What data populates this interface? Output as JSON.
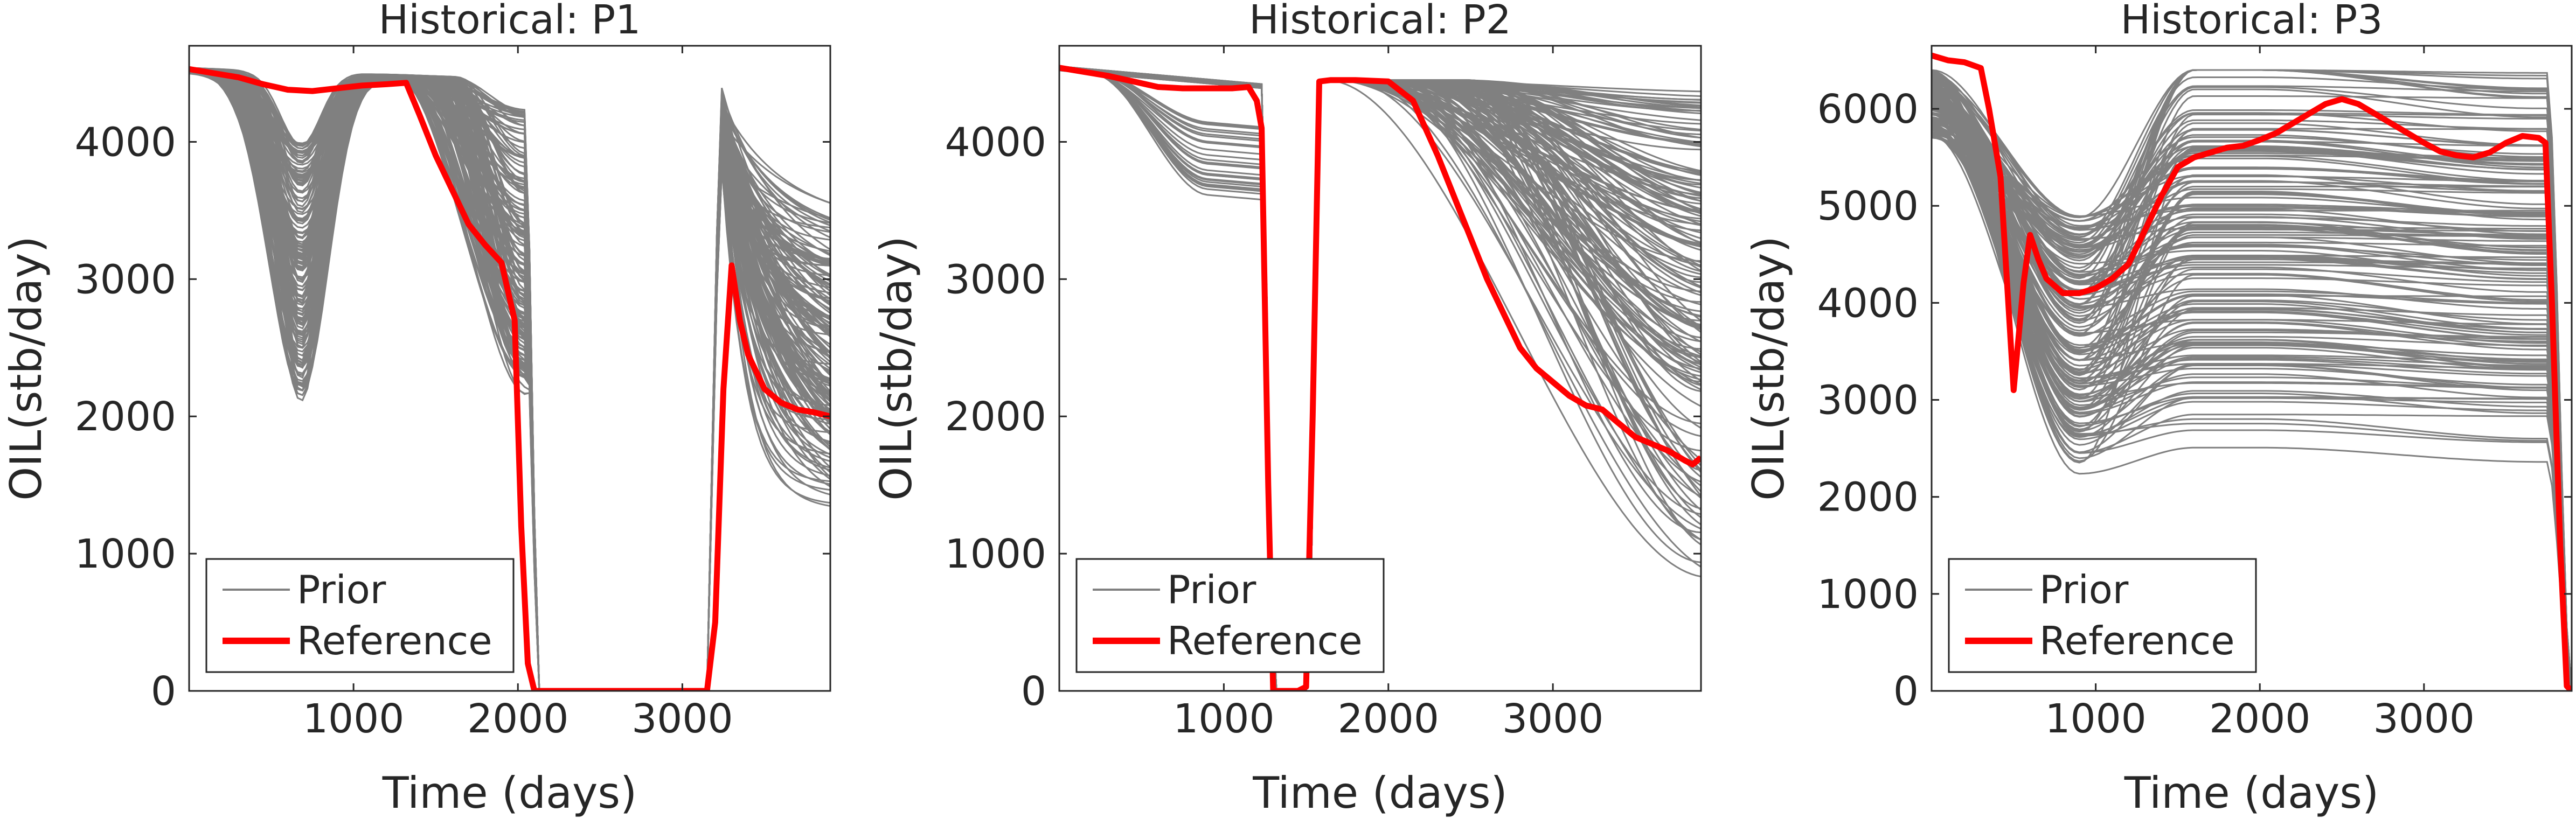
{
  "figure": {
    "colors": {
      "prior": "#808080",
      "reference": "#ff0000",
      "axis": "#262626",
      "background": "#ffffff"
    }
  },
  "chart_data": [
    {
      "type": "line",
      "title": "Historical: P1",
      "xlabel": "Time (days)",
      "ylabel": "OIL(stb/day)",
      "xlim": [
        0,
        3900
      ],
      "ylim": [
        0,
        4700
      ],
      "xticks": [
        1000,
        2000,
        3000
      ],
      "xtick_labels": [
        "1000",
        "2000",
        "3000"
      ],
      "yticks": [
        0,
        1000,
        2000,
        3000,
        4000
      ],
      "ytick_labels": [
        "0",
        "1000",
        "2000",
        "3000",
        "4000"
      ],
      "grid": false,
      "legend": {
        "position": "bottom-left",
        "entries": [
          "Prior",
          "Reference"
        ]
      },
      "series": [
        {
          "name": "Reference",
          "x": [
            0,
            150,
            300,
            450,
            600,
            750,
            900,
            1050,
            1200,
            1320,
            1400,
            1500,
            1600,
            1700,
            1800,
            1900,
            1980,
            2020,
            2060,
            2100,
            2200,
            2400,
            2600,
            2800,
            3000,
            3150,
            3200,
            3250,
            3300,
            3350,
            3400,
            3500,
            3600,
            3700,
            3800,
            3900
          ],
          "y": [
            4530,
            4500,
            4470,
            4420,
            4380,
            4370,
            4390,
            4410,
            4420,
            4430,
            4200,
            3900,
            3650,
            3400,
            3250,
            3120,
            2700,
            1200,
            200,
            0,
            0,
            0,
            0,
            0,
            0,
            0,
            500,
            2200,
            3100,
            2700,
            2450,
            2200,
            2100,
            2050,
            2030,
            2000
          ]
        },
        {
          "name": "Prior",
          "ensemble_size_approx": 500,
          "summary": "Grey prior ensemble of 4500-4550 stb/day at t=0, dipping to 2200-4400 near 700 days and 2100-4450 by 2000 days, shut in to 0 from about 2100 to 3150 days, then restarting near 4450 and declining to 1250-3400 stb/day by 3900 days"
        }
      ]
    },
    {
      "type": "line",
      "title": "Historical: P2",
      "xlabel": "Time (days)",
      "ylabel": "OIL(stb/day)",
      "xlim": [
        0,
        3900
      ],
      "ylim": [
        0,
        4700
      ],
      "xticks": [
        1000,
        2000,
        3000
      ],
      "xtick_labels": [
        "1000",
        "2000",
        "3000"
      ],
      "yticks": [
        0,
        1000,
        2000,
        3000,
        4000
      ],
      "ytick_labels": [
        "0",
        "1000",
        "2000",
        "3000",
        "4000"
      ],
      "grid": false,
      "legend": {
        "position": "bottom-left",
        "entries": [
          "Prior",
          "Reference"
        ]
      },
      "series": [
        {
          "name": "Reference",
          "x": [
            0,
            150,
            300,
            450,
            600,
            750,
            900,
            1050,
            1150,
            1200,
            1230,
            1270,
            1300,
            1350,
            1400,
            1450,
            1500,
            1540,
            1580,
            1650,
            1800,
            2000,
            2150,
            2300,
            2400,
            2500,
            2600,
            2700,
            2800,
            2900,
            3000,
            3100,
            3200,
            3300,
            3400,
            3500,
            3600,
            3700,
            3800,
            3850,
            3900
          ],
          "y": [
            4540,
            4510,
            4480,
            4440,
            4400,
            4390,
            4390,
            4390,
            4400,
            4300,
            4100,
            1500,
            0,
            0,
            0,
            0,
            30,
            2000,
            4440,
            4450,
            4450,
            4440,
            4300,
            3900,
            3600,
            3300,
            3000,
            2750,
            2500,
            2350,
            2250,
            2150,
            2080,
            2050,
            1950,
            1850,
            1800,
            1750,
            1680,
            1650,
            1700
          ]
        },
        {
          "name": "Prior",
          "ensemble_size_approx": 500,
          "summary": "Grey prior ensemble of 4500-4550 stb/day at t=0, flat near 4400 until about 1250 days with a few early decliners to 3800, resuming near 4450 after 1550 days and declining to a spread of 800-4400 stb/day by 3900 days"
        }
      ]
    },
    {
      "type": "line",
      "title": "Historical: P3",
      "xlabel": "Time (days)",
      "ylabel": "OIL(stb/day)",
      "xlim": [
        0,
        3900
      ],
      "ylim": [
        0,
        6650
      ],
      "xticks": [
        1000,
        2000,
        3000
      ],
      "xtick_labels": [
        "1000",
        "2000",
        "3000"
      ],
      "yticks": [
        0,
        1000,
        2000,
        3000,
        4000,
        5000,
        6000
      ],
      "ytick_labels": [
        "0",
        "1000",
        "2000",
        "3000",
        "4000",
        "5000",
        "6000"
      ],
      "grid": false,
      "legend": {
        "position": "bottom-left",
        "entries": [
          "Prior",
          "Reference"
        ]
      },
      "series": [
        {
          "name": "Reference",
          "x": [
            0,
            100,
            200,
            300,
            350,
            420,
            460,
            500,
            560,
            600,
            650,
            700,
            800,
            900,
            1000,
            1100,
            1200,
            1300,
            1400,
            1500,
            1600,
            1700,
            1800,
            1900,
            2000,
            2100,
            2200,
            2300,
            2400,
            2500,
            2600,
            2700,
            2800,
            2900,
            3000,
            3100,
            3200,
            3300,
            3400,
            3500,
            3600,
            3700,
            3740,
            3780,
            3830,
            3870,
            3900
          ],
          "y": [
            6550,
            6500,
            6480,
            6420,
            6000,
            5300,
            4200,
            3100,
            4200,
            4700,
            4450,
            4250,
            4100,
            4100,
            4150,
            4250,
            4400,
            4750,
            5100,
            5400,
            5500,
            5550,
            5600,
            5620,
            5680,
            5750,
            5850,
            5950,
            6050,
            6100,
            6050,
            5950,
            5850,
            5750,
            5650,
            5560,
            5520,
            5500,
            5550,
            5650,
            5720,
            5700,
            5650,
            4000,
            1500,
            50,
            0
          ]
        },
        {
          "name": "Prior",
          "ensemble_size_approx": 500,
          "summary": "Grey prior ensemble of 5700-6400 stb/day at t=0, dropping to 2200-4900 around 800-1000 days, recovering to a wide band of 1200-6400 stb/day between 1500 and 3750 days"
        }
      ]
    }
  ]
}
